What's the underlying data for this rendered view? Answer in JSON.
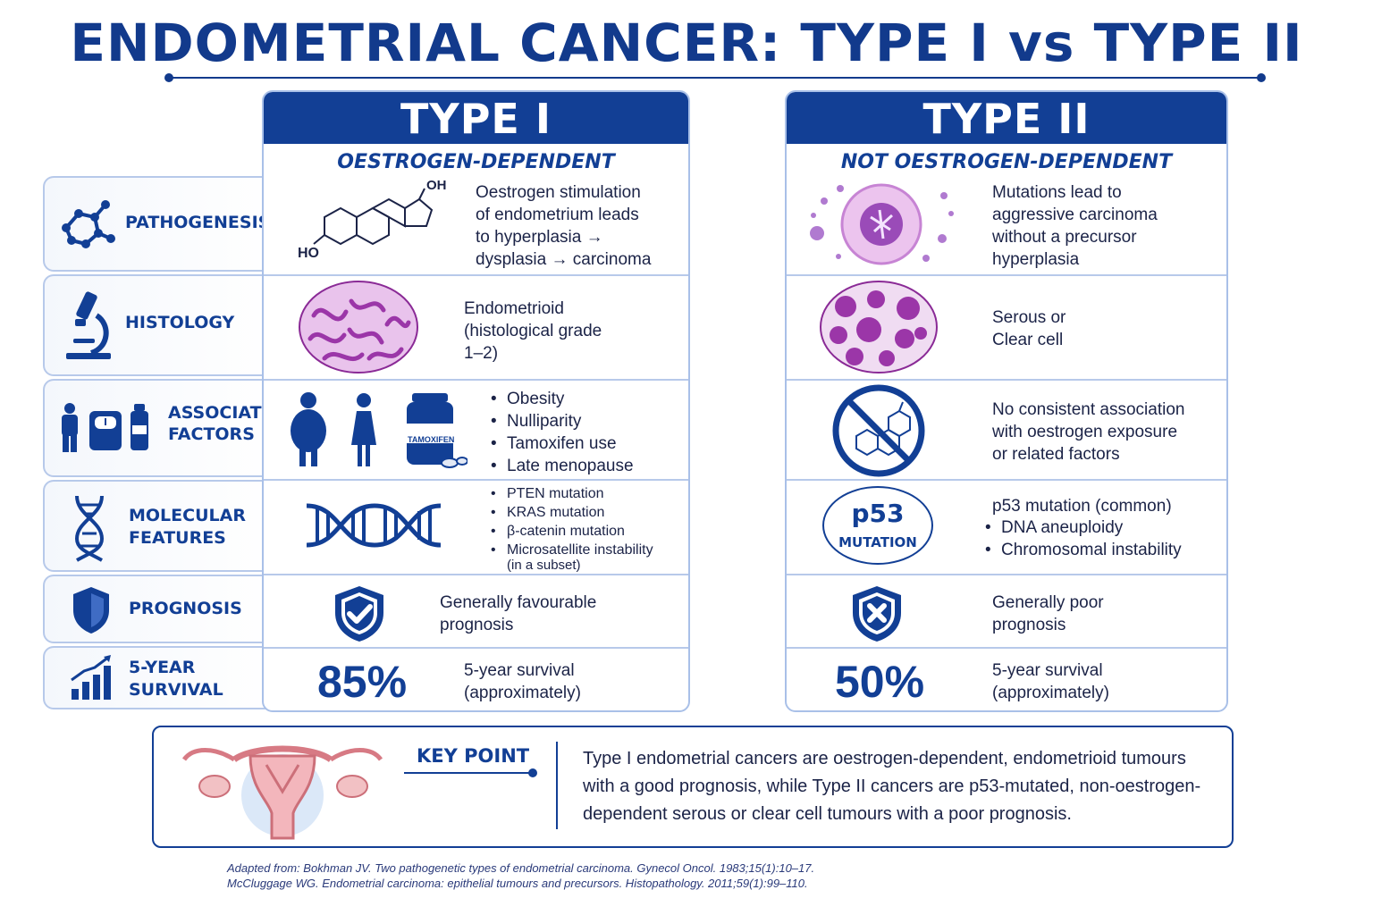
{
  "title": "ENDOMETRIAL CANCER: TYPE I vs TYPE II",
  "colors": {
    "navy": "#123f95",
    "border": "#b7c9ea",
    "tissue": "#b04ab8"
  },
  "rows": {
    "pathogenesis": "PATHOGENESIS",
    "histology": "HISTOLOGY",
    "associated": [
      "ASSOCIATED",
      "FACTORS"
    ],
    "molecular": [
      "MOLECULAR",
      "FEATURES"
    ],
    "prognosis": "PROGNOSIS",
    "survival": [
      "5-YEAR",
      "SURVIVAL"
    ]
  },
  "type1": {
    "header": "TYPE I",
    "subtitle": "OESTROGEN-DEPENDENT",
    "steroid_labels": {
      "oh": "OH",
      "ho": "HO"
    },
    "pathogenesis": [
      "Oestrogen stimulation",
      "of endometrium leads",
      "to hyperplasia →",
      "dysplasia → carcinoma"
    ],
    "histology": [
      "Endometrioid",
      "(histological grade",
      "1–2)"
    ],
    "drug_label": "TAMOXIFEN",
    "associated": [
      "Obesity",
      "Nulliparity",
      "Tamoxifen use",
      "Late menopause"
    ],
    "molecular": [
      "PTEN mutation",
      "KRAS mutation",
      "β-catenin mutation",
      "Microsatellite instability"
    ],
    "molecular_note": "(in a subset)",
    "prognosis": [
      "Generally favourable",
      "prognosis"
    ],
    "survival_value": "85%",
    "survival_text": [
      "5-year survival",
      "(approximately)"
    ]
  },
  "type2": {
    "header": "TYPE II",
    "subtitle": "NOT OESTROGEN-DEPENDENT",
    "pathogenesis": [
      "Mutations lead to",
      "aggressive carcinoma",
      "without a precursor",
      "hyperplasia"
    ],
    "histology": [
      "Serous or",
      "Clear cell"
    ],
    "associated": [
      "No consistent association",
      "with oestrogen exposure",
      "or related factors"
    ],
    "p53_badge": "p53",
    "p53_badge_sub": "MUTATION",
    "molecular_head": "p53 mutation (common)",
    "molecular": [
      "DNA aneuploidy",
      "Chromosomal instability"
    ],
    "prognosis": [
      "Generally poor",
      "prognosis"
    ],
    "survival_value": "50%",
    "survival_text": [
      "5-year survival",
      "(approximately)"
    ]
  },
  "key_point": {
    "label": "KEY POINT",
    "lines": [
      "Type I endometrial cancers are oestrogen-dependent, endometrioid tumours",
      "with a good prognosis, while Type II cancers are p53-mutated, non-oestrogen-",
      "dependent serous or clear cell tumours with a poor prognosis."
    ]
  },
  "references": [
    "Adapted from: Bokhman JV. Two pathogenetic types of endometrial carcinoma. Gynecol Oncol. 1983;15(1):10–17.",
    "McCluggage WG. Endometrial carcinoma: epithelial tumours and precursors. Histopathology. 2011;59(1):99–110."
  ]
}
